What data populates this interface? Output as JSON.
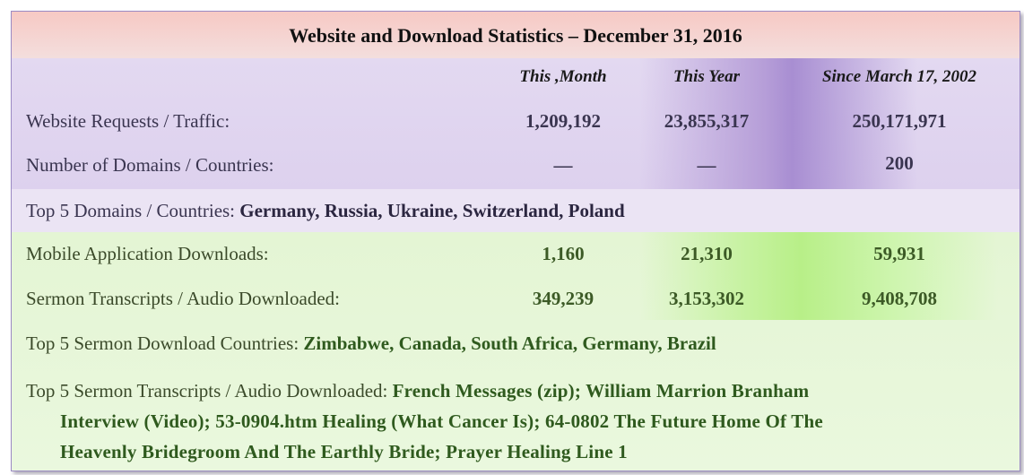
{
  "title": "Website and Download Statistics – December 31, 2016",
  "columns": [
    "This ,Month",
    "This Year",
    "Since March 17, 2002"
  ],
  "rows": [
    {
      "label": "Website Requests / Traffic:",
      "values": [
        "1,209,192",
        "23,855,317",
        "250,171,971"
      ]
    },
    {
      "label": "Number of Domains / Countries:",
      "values": [
        "—",
        "—",
        "200"
      ]
    },
    {
      "label": "Mobile Application Downloads:",
      "values": [
        "1,160",
        "21,310",
        "59,931"
      ]
    },
    {
      "label": "Sermon Transcripts / Audio Downloaded:",
      "values": [
        "349,239",
        "3,153,302",
        "9,408,708"
      ]
    }
  ],
  "top5_domains": {
    "label": "Top 5 Domains / Countries:",
    "value": "Germany, Russia, Ukraine, Switzerland, Poland"
  },
  "top5_sermon_countries": {
    "label": "Top 5 Sermon Download Countries:",
    "value": "Zimbabwe, Canada, South Africa, Germany, Brazil"
  },
  "top5_transcripts": {
    "label": "Top 5 Sermon Transcripts / Audio Downloaded:",
    "line1": "French Messages (zip); William Marrion Branham",
    "line2": "Interview (Video); 53-0904.htm Healing (What Cancer Is); 64-0802 The Future Home Of The",
    "line3": "Heavenly Bridegroom And The Earthly Bride; Prayer Healing Line 1"
  },
  "colors": {
    "title_band": "#f7c9c4",
    "purple_band": "#ddd1ee",
    "lavender_band": "#ebe4f4",
    "green_band": "#e4f5d4",
    "green_highlight": "#b8ef88",
    "purple_highlight": "#a88ed2"
  }
}
